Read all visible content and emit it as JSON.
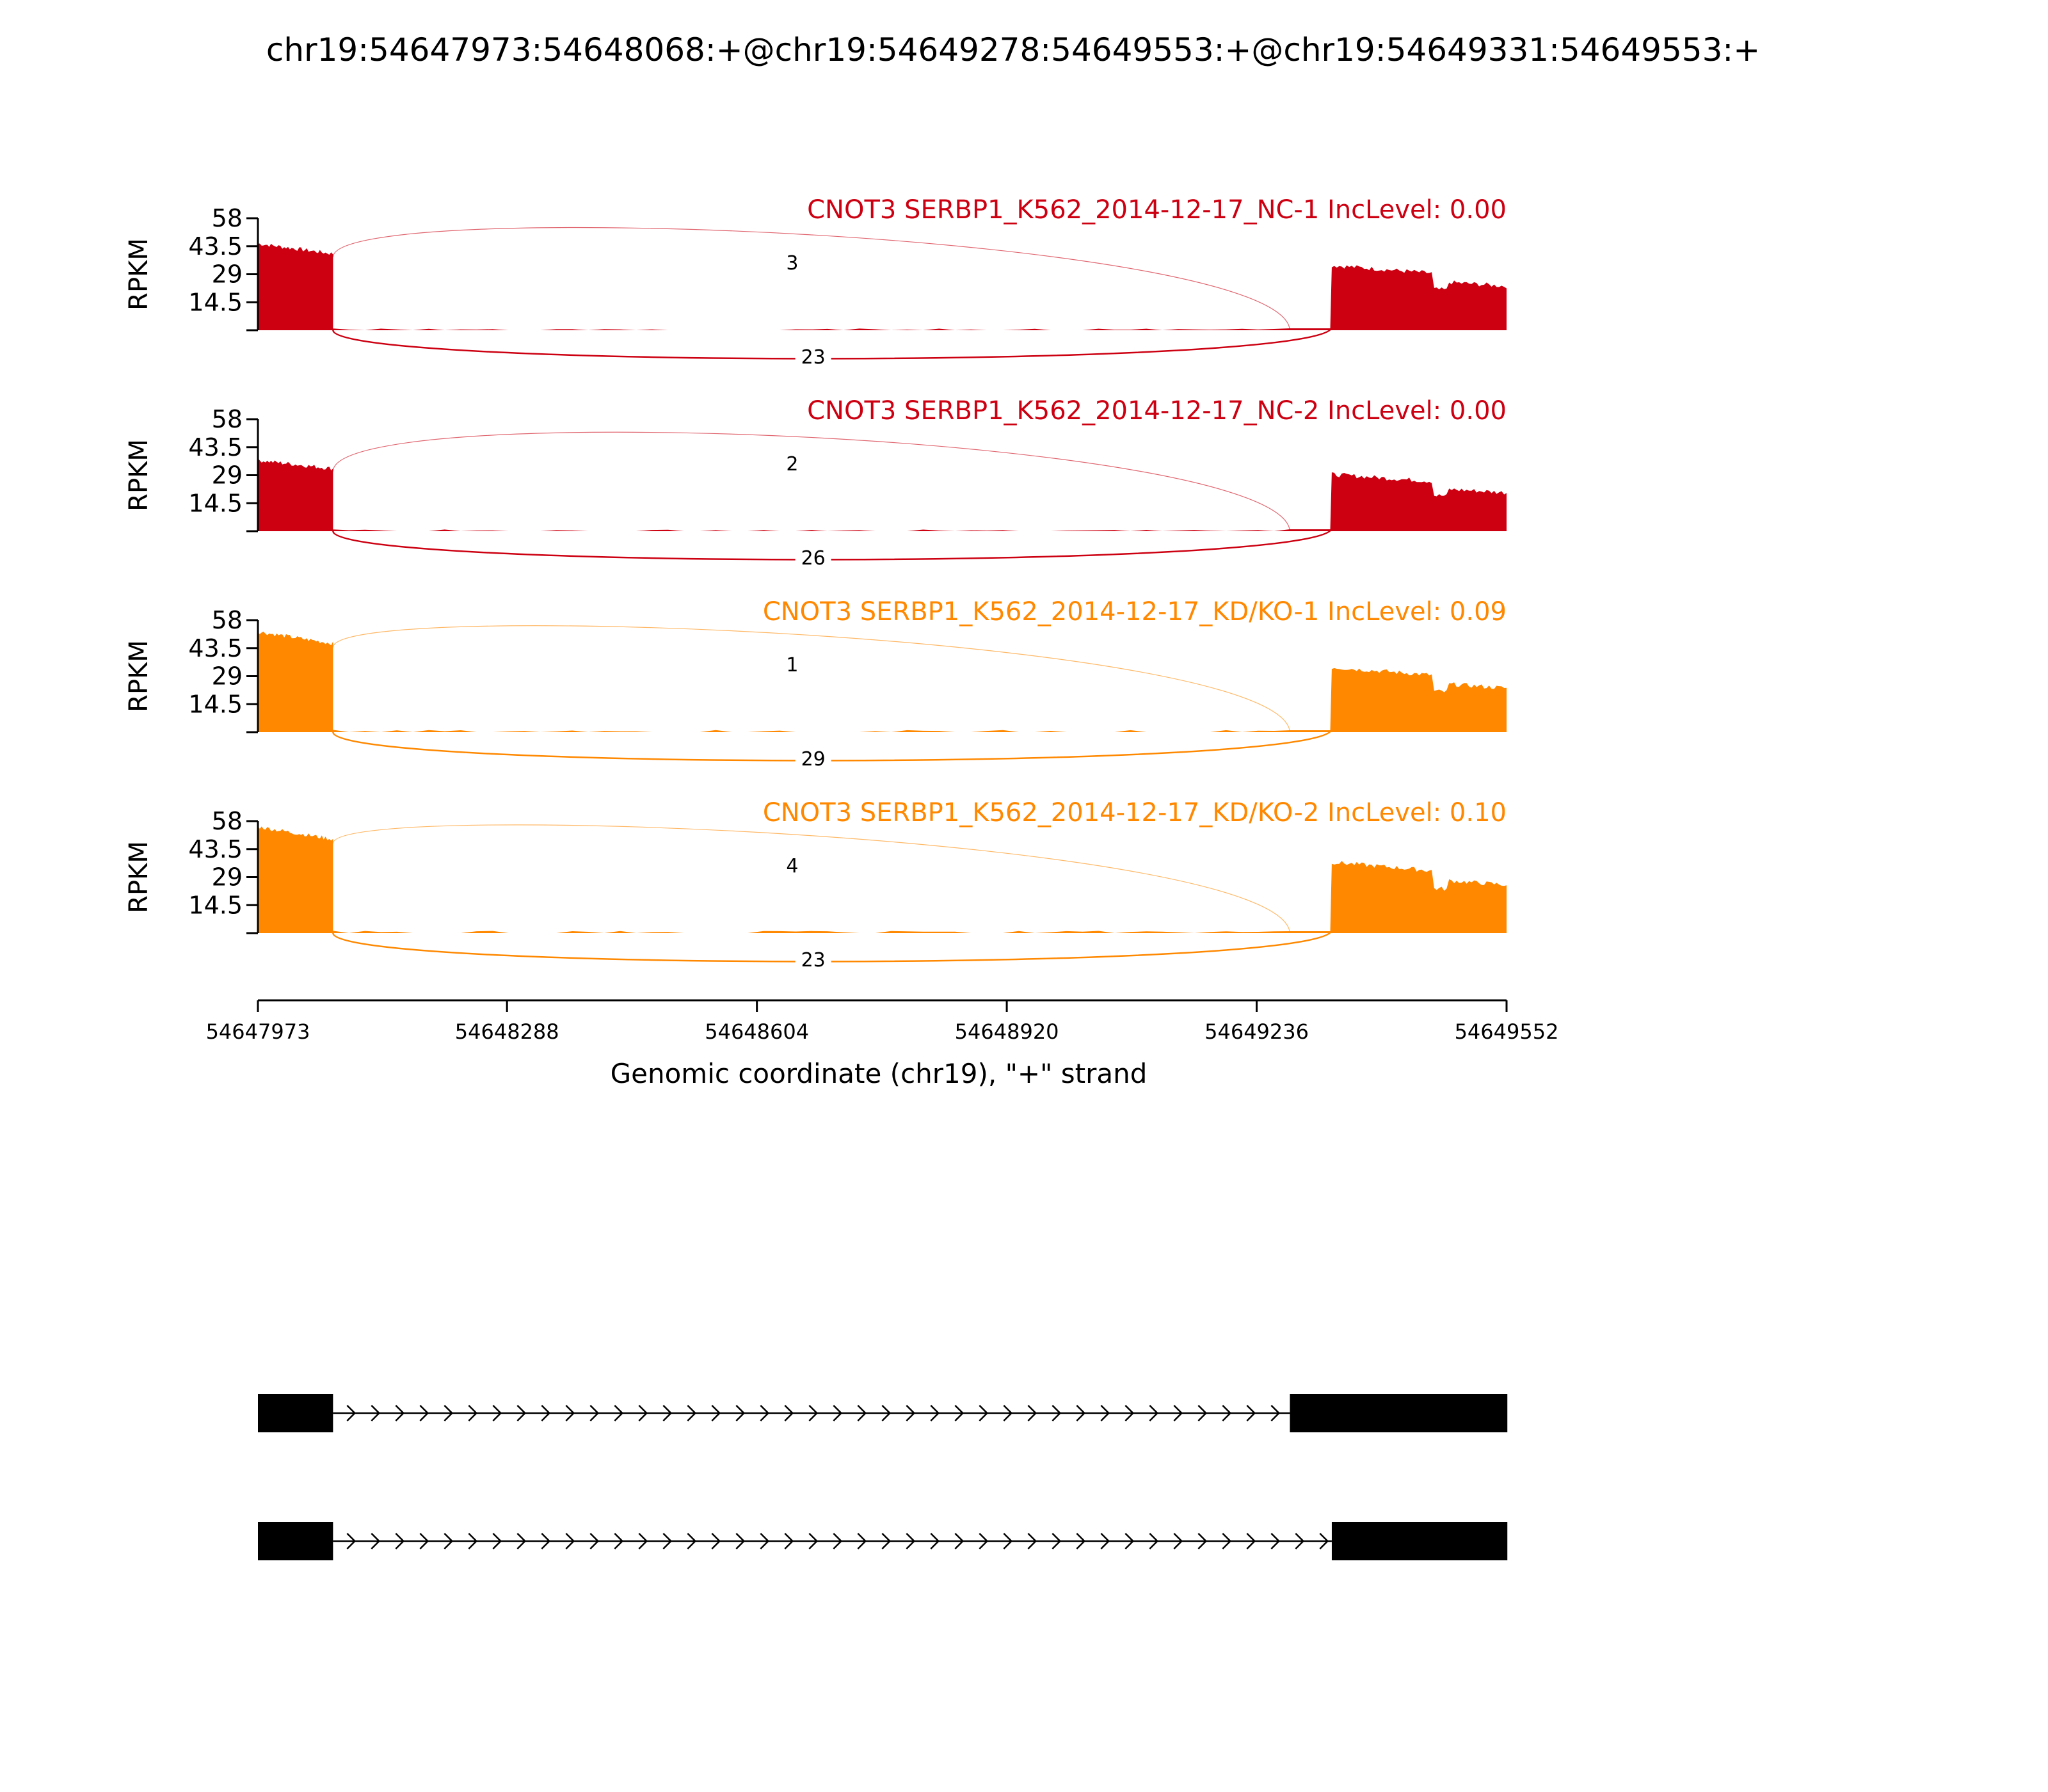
{
  "chart_data": {
    "type": "sashimi",
    "title": "chr19:54647973:54648068:+@chr19:54649278:54649553:+@chr19:54649331:54649553:+",
    "xlabel": "Genomic coordinate (chr19), \"+\" strand",
    "ylabel": "RPKM",
    "xlim": [
      54647973,
      54649552
    ],
    "x_ticks": [
      54647973,
      54648288,
      54648604,
      54648920,
      54649236,
      54649552
    ],
    "ylim": [
      0,
      58
    ],
    "y_ticks": [
      14.5,
      29,
      43.5,
      58
    ],
    "y_tick_labels": [
      "14.5",
      "29",
      "43.5",
      "58"
    ],
    "exons": {
      "upstream": [
        54647973,
        54648068
      ],
      "alternative": [
        54649278,
        54649331
      ],
      "downstream": [
        54649331,
        54649553
      ]
    },
    "panels": [
      {
        "name": "CNOT3 SERBP1_K562_2014-12-17_NC-1 IncLevel: 0.00",
        "color": "#cc0011",
        "up_level": 44,
        "alt_level": 1,
        "down_level": 32,
        "intron_level": 0.9,
        "junctions": [
          {
            "start": 54648068,
            "end": 54649278,
            "count": "3",
            "side": "above"
          },
          {
            "start": 54648068,
            "end": 54649331,
            "count": "23",
            "side": "below"
          }
        ]
      },
      {
        "name": "CNOT3 SERBP1_K562_2014-12-17_NC-2 IncLevel: 0.00",
        "color": "#cc0011",
        "up_level": 36,
        "alt_level": 1,
        "down_level": 28,
        "intron_level": 0.9,
        "junctions": [
          {
            "start": 54648068,
            "end": 54649278,
            "count": "2",
            "side": "above"
          },
          {
            "start": 54648068,
            "end": 54649331,
            "count": "26",
            "side": "below"
          }
        ]
      },
      {
        "name": "CNOT3 SERBP1_K562_2014-12-17_KD/KO-1 IncLevel: 0.09",
        "color": "#ff8800",
        "up_level": 51,
        "alt_level": 1,
        "down_level": 32,
        "intron_level": 1.2,
        "junctions": [
          {
            "start": 54648068,
            "end": 54649278,
            "count": "1",
            "side": "above"
          },
          {
            "start": 54648068,
            "end": 54649331,
            "count": "29",
            "side": "below"
          }
        ]
      },
      {
        "name": "CNOT3 SERBP1_K562_2014-12-17_KD/KO-2 IncLevel: 0.10",
        "color": "#ff8800",
        "up_level": 54,
        "alt_level": 1,
        "down_level": 35,
        "intron_level": 1.2,
        "junctions": [
          {
            "start": 54648068,
            "end": 54649278,
            "count": "4",
            "side": "above"
          },
          {
            "start": 54648068,
            "end": 54649331,
            "count": "23",
            "side": "below"
          }
        ]
      }
    ],
    "transcripts": [
      {
        "exons": [
          [
            54647973,
            54648068
          ],
          [
            54649278,
            54649553
          ]
        ]
      },
      {
        "exons": [
          [
            54647973,
            54648068
          ],
          [
            54649331,
            54649553
          ]
        ]
      }
    ]
  }
}
